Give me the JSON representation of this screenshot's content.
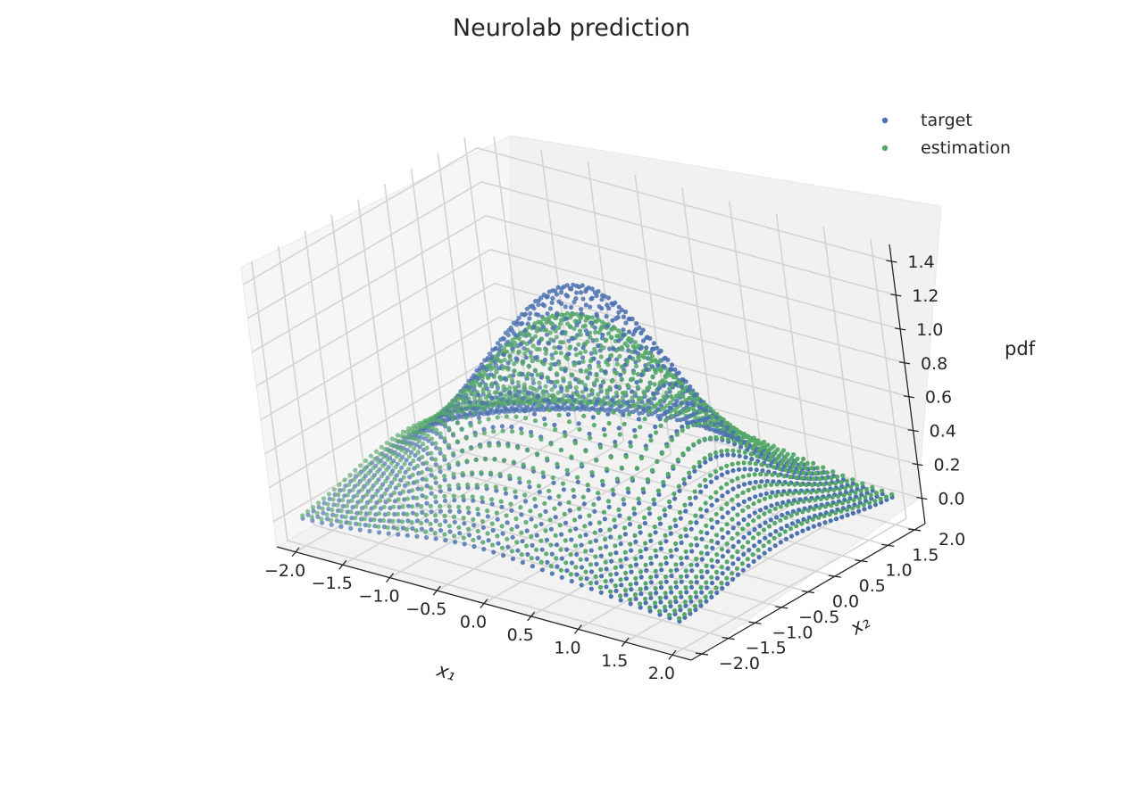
{
  "chart_data": {
    "type": "scatter",
    "title": "Neurolab prediction",
    "xlabel": "x₁",
    "ylabel": "x₂",
    "zlabel": "pdf",
    "xlim": [
      -2.2,
      2.2
    ],
    "ylim": [
      -2.2,
      2.2
    ],
    "zlim": [
      -0.15,
      1.5
    ],
    "xticks": [
      -2.0,
      -1.5,
      -1.0,
      -0.5,
      0.0,
      0.5,
      1.0,
      1.5,
      2.0
    ],
    "yticks": [
      -2.0,
      -1.5,
      -1.0,
      -0.5,
      0.0,
      0.5,
      1.0,
      1.5,
      2.0
    ],
    "zticks": [
      0.0,
      0.2,
      0.4,
      0.6,
      0.8,
      1.0,
      1.2,
      1.4
    ],
    "grid": true,
    "legend_position": "top-right",
    "series": [
      {
        "name": "target",
        "color": "#4c72b0",
        "marker": "circle"
      },
      {
        "name": "estimation",
        "color": "#55a868",
        "marker": "circle"
      }
    ],
    "description": "3D scatter of a gaussian-like pdf surface on a 40x40 grid of x1, x2 in [-2, 2]; target peaks near 1.3, estimation peaks near 1.1"
  }
}
